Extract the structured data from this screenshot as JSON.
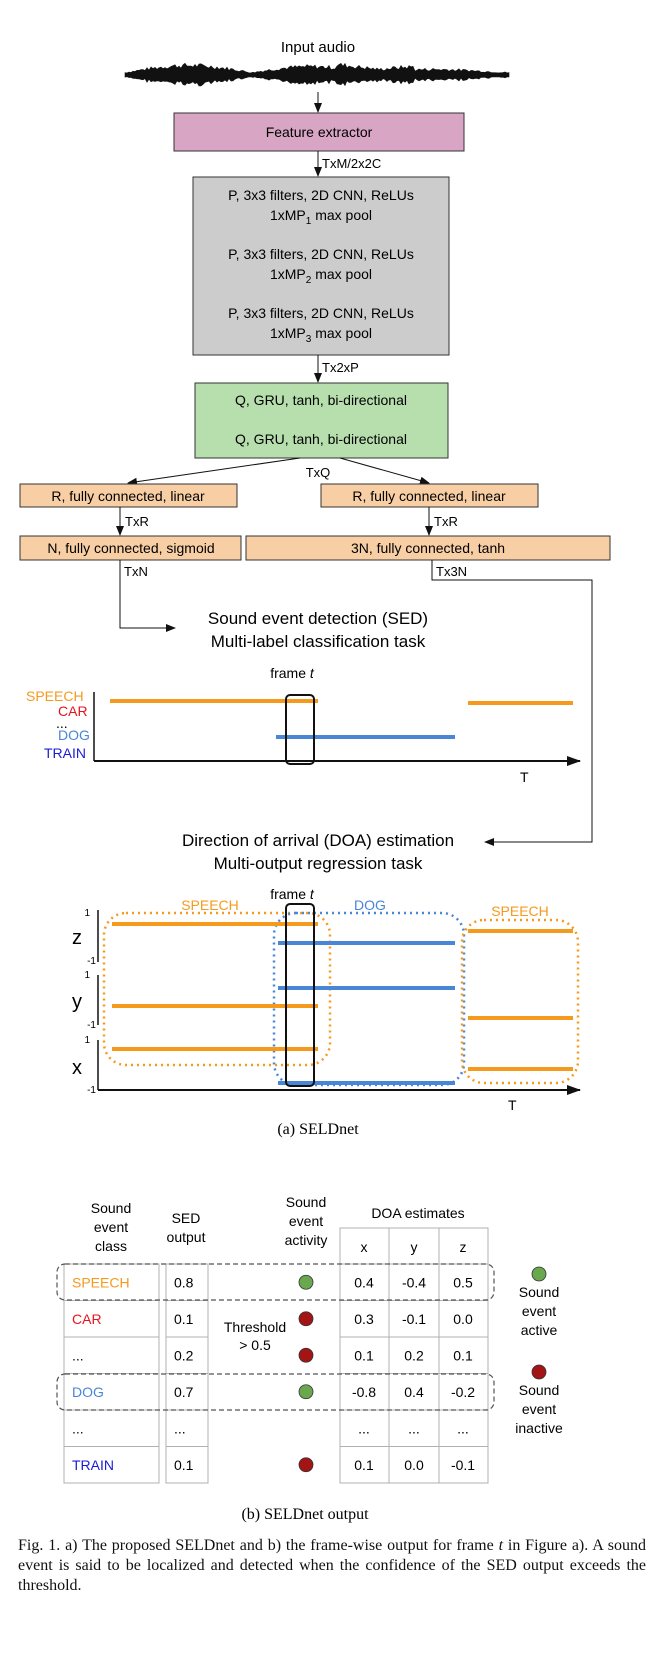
{
  "colors": {
    "feature_box": "#d8a6c4",
    "cnn_box": "#cccccc",
    "gru_box": "#b7dfae",
    "fc_box": "#f8cfa5",
    "speech": "#f59a1d",
    "car": "#e8141c",
    "dog": "#4a86d6",
    "train": "#1b1bd6",
    "active_dot": "#6aa84f",
    "inactive_dot": "#a31515"
  },
  "seldnet": {
    "input_label": "Input audio",
    "feature_extractor": "Feature extractor",
    "shape_feat": "TxM/2x2C",
    "cnn": [
      {
        "line1": "P, 3x3 filters, 2D CNN, ReLUs",
        "pool_pre": "1xMP",
        "pool_sub": "1",
        "pool_post": " max pool"
      },
      {
        "line1": "P, 3x3 filters, 2D CNN, ReLUs",
        "pool_pre": "1xMP",
        "pool_sub": "2",
        "pool_post": " max pool"
      },
      {
        "line1": "P, 3x3 filters, 2D CNN, ReLUs",
        "pool_pre": "1xMP",
        "pool_sub": "3",
        "pool_post": " max pool"
      }
    ],
    "shape_cnn": "Tx2xP",
    "gru": [
      "Q, GRU, tanh, bi-directional",
      "Q, GRU, tanh, bi-directional"
    ],
    "shape_gru": "TxQ",
    "sed_fc1": "R, fully connected, linear",
    "sed_fc1_shape": "TxR",
    "sed_fc2": "N, fully connected, sigmoid",
    "sed_fc2_shape": "TxN",
    "doa_fc1": "R, fully connected, linear",
    "doa_fc1_shape": "TxR",
    "doa_fc2": "3N, fully connected, tanh",
    "doa_fc2_shape": "Tx3N",
    "sed_title_1": "Sound event detection (SED)",
    "sed_title_2": "Multi-label classification task",
    "frame_label_pre": "frame ",
    "frame_label_var": "t",
    "sed_classes": [
      "SPEECH",
      "CAR",
      "...",
      "DOG",
      "TRAIN"
    ],
    "time_axis": "T",
    "doa_title_1": "Direction of arrival (DOA) estimation",
    "doa_title_2": "Multi-output regression task",
    "doa_group_labels": [
      "SPEECH",
      "DOG",
      "SPEECH"
    ],
    "doa_axes": [
      "z",
      "y",
      "x"
    ],
    "axis_max": "1",
    "axis_min": "-1",
    "subcaption": "(a) SELDnet"
  },
  "output_table": {
    "col_class": [
      "Sound",
      "event",
      "class"
    ],
    "col_sed": [
      "SED",
      "output"
    ],
    "col_activity": [
      "Sound",
      "event",
      "activity"
    ],
    "col_doa": "DOA estimates",
    "doa_sub": [
      "x",
      "y",
      "z"
    ],
    "threshold": [
      "Threshold",
      "> 0.5"
    ],
    "rows": [
      {
        "cls": "SPEECH",
        "sed": "0.8",
        "active": "yes",
        "x": "0.4",
        "y": "-0.4",
        "z": "0.5"
      },
      {
        "cls": "CAR",
        "sed": "0.1",
        "active": "no",
        "x": "0.3",
        "y": "-0.1",
        "z": "0.0"
      },
      {
        "cls": "...",
        "sed": "0.2",
        "active": "no",
        "x": "0.1",
        "y": "0.2",
        "z": "0.1"
      },
      {
        "cls": "DOG",
        "sed": "0.7",
        "active": "yes",
        "x": "-0.8",
        "y": "0.4",
        "z": "-0.2"
      },
      {
        "cls": "...",
        "sed": "...",
        "active": "none",
        "x": "...",
        "y": "...",
        "z": "..."
      },
      {
        "cls": "TRAIN",
        "sed": "0.1",
        "active": "no",
        "x": "0.1",
        "y": "0.0",
        "z": "-0.1"
      }
    ],
    "legend_active": [
      "Sound",
      "event",
      "active"
    ],
    "legend_inactive": [
      "Sound",
      "event",
      "inactive"
    ],
    "subcaption": "(b) SELDnet output"
  },
  "caption": {
    "text_1": "Fig. 1.  a) The proposed SELDnet and b) the frame-wise output for frame ",
    "var": "t",
    "text_2": " in Figure a). A sound event is said to be localized and detected when the confidence of the SED output exceeds the threshold."
  }
}
